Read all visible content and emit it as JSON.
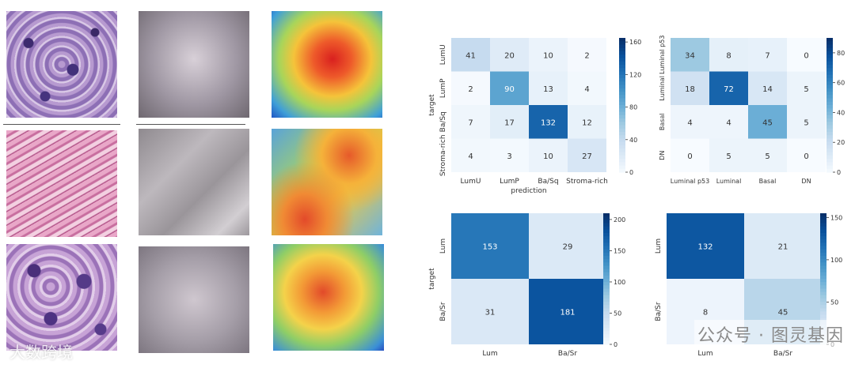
{
  "figure": {
    "watermark_left": "大数跨境",
    "watermark_right": "公众号 · 图灵基因",
    "tile_rows": [
      "row-1",
      "row-2",
      "row-3"
    ],
    "tile_types": [
      "h-and-e",
      "grayscale",
      "heatmap"
    ]
  },
  "chart_data": [
    {
      "type": "heatmap",
      "title": "",
      "xlabel": "prediction",
      "ylabel": "target",
      "rows": [
        "LumU",
        "LumP",
        "Ba/Sq",
        "Stroma-rich"
      ],
      "cols": [
        "LumU",
        "LumP",
        "Ba/Sq",
        "Stroma-rich"
      ],
      "values": [
        [
          41,
          20,
          10,
          2
        ],
        [
          2,
          90,
          13,
          4
        ],
        [
          7,
          17,
          132,
          12
        ],
        [
          4,
          3,
          10,
          27
        ]
      ],
      "colorbar": {
        "min": 0,
        "max": 165,
        "ticks": [
          0,
          40,
          80,
          120,
          160
        ]
      }
    },
    {
      "type": "heatmap",
      "title": "",
      "xlabel": "",
      "ylabel": "",
      "rows": [
        "Luminal p53",
        "Luminal",
        "Basal",
        "DN"
      ],
      "cols": [
        "Luminal p53",
        "Luminal",
        "Basal",
        "DN"
      ],
      "values": [
        [
          34,
          8,
          7,
          0
        ],
        [
          18,
          72,
          14,
          5
        ],
        [
          4,
          4,
          45,
          5
        ],
        [
          0,
          5,
          5,
          0
        ]
      ],
      "colorbar": {
        "min": 0,
        "max": 90,
        "ticks": [
          0,
          20,
          40,
          60,
          80
        ]
      }
    },
    {
      "type": "heatmap",
      "title": "",
      "xlabel": "",
      "ylabel": "target",
      "rows": [
        "Lum",
        "Ba/Sr"
      ],
      "cols": [
        "Lum",
        "Ba/Sr"
      ],
      "values": [
        [
          153,
          29
        ],
        [
          31,
          181
        ]
      ],
      "colorbar": {
        "min": 0,
        "max": 210,
        "ticks": [
          0,
          50,
          100,
          150,
          200
        ]
      }
    },
    {
      "type": "heatmap",
      "title": "",
      "xlabel": "",
      "ylabel": "",
      "rows": [
        "Lum",
        "Ba/Sr"
      ],
      "cols": [
        "Lum",
        "Ba/Sr"
      ],
      "values": [
        [
          132,
          21
        ],
        [
          8,
          45
        ]
      ],
      "colorbar": {
        "min": 0,
        "max": 155,
        "ticks": [
          0,
          50,
          100,
          150
        ]
      }
    }
  ]
}
